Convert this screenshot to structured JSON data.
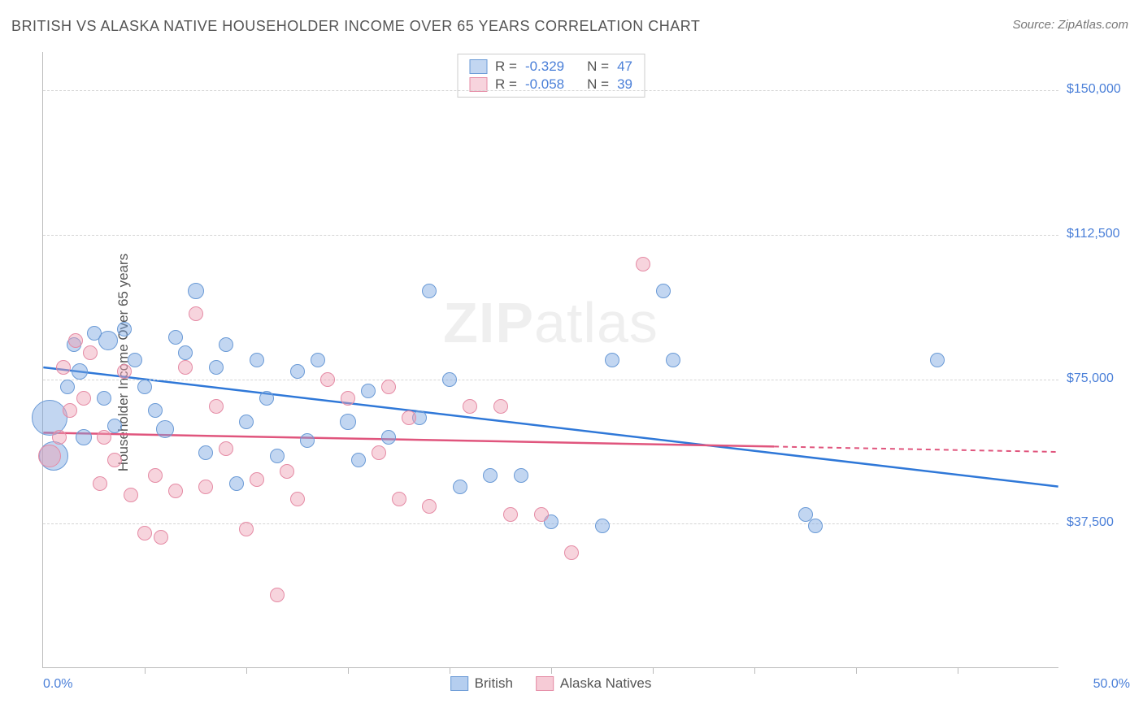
{
  "title": "BRITISH VS ALASKA NATIVE HOUSEHOLDER INCOME OVER 65 YEARS CORRELATION CHART",
  "source": "Source: ZipAtlas.com",
  "ylabel": "Householder Income Over 65 years",
  "watermark_bold": "ZIP",
  "watermark_rest": "atlas",
  "chart": {
    "type": "scatter",
    "xlim": [
      0,
      50
    ],
    "ylim": [
      0,
      160000
    ],
    "x_start_label": "0.0%",
    "x_end_label": "50.0%",
    "y_ticks": [
      {
        "value": 37500,
        "label": "$37,500"
      },
      {
        "value": 75000,
        "label": "$75,000"
      },
      {
        "value": 112500,
        "label": "$112,500"
      },
      {
        "value": 150000,
        "label": "$150,000"
      }
    ],
    "x_tick_positions": [
      5,
      10,
      15,
      20,
      25,
      30,
      35,
      40,
      45
    ],
    "background_color": "#ffffff",
    "grid_color": "#d5d5d5",
    "axis_color": "#bbbbbb",
    "label_color": "#4a7fd8",
    "series": [
      {
        "name": "British",
        "fill": "rgba(120,165,225,0.45)",
        "stroke": "#6a9ad6",
        "trend_color": "#2f78d8",
        "R": "-0.329",
        "N": "47",
        "trend": {
          "x1": 0,
          "y1": 78000,
          "x2": 50,
          "y2": 47000,
          "solid_until_x": 50
        },
        "points": [
          {
            "x": 0.3,
            "y": 65000,
            "r": 22
          },
          {
            "x": 0.5,
            "y": 55000,
            "r": 18
          },
          {
            "x": 1.2,
            "y": 73000,
            "r": 9
          },
          {
            "x": 1.5,
            "y": 84000,
            "r": 9
          },
          {
            "x": 1.8,
            "y": 77000,
            "r": 10
          },
          {
            "x": 2.0,
            "y": 60000,
            "r": 10
          },
          {
            "x": 2.5,
            "y": 87000,
            "r": 9
          },
          {
            "x": 3.0,
            "y": 70000,
            "r": 9
          },
          {
            "x": 3.2,
            "y": 85000,
            "r": 12
          },
          {
            "x": 3.5,
            "y": 63000,
            "r": 9
          },
          {
            "x": 4.0,
            "y": 88000,
            "r": 9
          },
          {
            "x": 4.5,
            "y": 80000,
            "r": 9
          },
          {
            "x": 5.0,
            "y": 73000,
            "r": 9
          },
          {
            "x": 5.5,
            "y": 67000,
            "r": 9
          },
          {
            "x": 6.0,
            "y": 62000,
            "r": 11
          },
          {
            "x": 6.5,
            "y": 86000,
            "r": 9
          },
          {
            "x": 7.0,
            "y": 82000,
            "r": 9
          },
          {
            "x": 7.5,
            "y": 98000,
            "r": 10
          },
          {
            "x": 8.0,
            "y": 56000,
            "r": 9
          },
          {
            "x": 8.5,
            "y": 78000,
            "r": 9
          },
          {
            "x": 9.0,
            "y": 84000,
            "r": 9
          },
          {
            "x": 9.5,
            "y": 48000,
            "r": 9
          },
          {
            "x": 10.0,
            "y": 64000,
            "r": 9
          },
          {
            "x": 10.5,
            "y": 80000,
            "r": 9
          },
          {
            "x": 11.0,
            "y": 70000,
            "r": 9
          },
          {
            "x": 11.5,
            "y": 55000,
            "r": 9
          },
          {
            "x": 12.5,
            "y": 77000,
            "r": 9
          },
          {
            "x": 13.0,
            "y": 59000,
            "r": 9
          },
          {
            "x": 13.5,
            "y": 80000,
            "r": 9
          },
          {
            "x": 15.0,
            "y": 64000,
            "r": 10
          },
          {
            "x": 15.5,
            "y": 54000,
            "r": 9
          },
          {
            "x": 16.0,
            "y": 72000,
            "r": 9
          },
          {
            "x": 17.0,
            "y": 60000,
            "r": 9
          },
          {
            "x": 18.5,
            "y": 65000,
            "r": 9
          },
          {
            "x": 19.0,
            "y": 98000,
            "r": 9
          },
          {
            "x": 20.0,
            "y": 75000,
            "r": 9
          },
          {
            "x": 20.5,
            "y": 47000,
            "r": 9
          },
          {
            "x": 22.0,
            "y": 50000,
            "r": 9
          },
          {
            "x": 23.5,
            "y": 50000,
            "r": 9
          },
          {
            "x": 25.0,
            "y": 38000,
            "r": 9
          },
          {
            "x": 27.5,
            "y": 37000,
            "r": 9
          },
          {
            "x": 28.0,
            "y": 80000,
            "r": 9
          },
          {
            "x": 30.5,
            "y": 98000,
            "r": 9
          },
          {
            "x": 31.0,
            "y": 80000,
            "r": 9
          },
          {
            "x": 37.5,
            "y": 40000,
            "r": 9
          },
          {
            "x": 38.0,
            "y": 37000,
            "r": 9
          },
          {
            "x": 44.0,
            "y": 80000,
            "r": 9
          }
        ]
      },
      {
        "name": "Alaska Natives",
        "fill": "rgba(238,160,180,0.45)",
        "stroke": "#e58ba5",
        "trend_color": "#e0557d",
        "R": "-0.058",
        "N": "39",
        "trend": {
          "x1": 0,
          "y1": 61000,
          "x2": 50,
          "y2": 56000,
          "solid_until_x": 36
        },
        "points": [
          {
            "x": 0.3,
            "y": 55000,
            "r": 14
          },
          {
            "x": 0.8,
            "y": 60000,
            "r": 9
          },
          {
            "x": 1.0,
            "y": 78000,
            "r": 9
          },
          {
            "x": 1.3,
            "y": 67000,
            "r": 9
          },
          {
            "x": 1.6,
            "y": 85000,
            "r": 9
          },
          {
            "x": 2.0,
            "y": 70000,
            "r": 9
          },
          {
            "x": 2.3,
            "y": 82000,
            "r": 9
          },
          {
            "x": 2.8,
            "y": 48000,
            "r": 9
          },
          {
            "x": 3.0,
            "y": 60000,
            "r": 9
          },
          {
            "x": 3.5,
            "y": 54000,
            "r": 9
          },
          {
            "x": 4.0,
            "y": 77000,
            "r": 9
          },
          {
            "x": 4.3,
            "y": 45000,
            "r": 9
          },
          {
            "x": 5.0,
            "y": 35000,
            "r": 9
          },
          {
            "x": 5.5,
            "y": 50000,
            "r": 9
          },
          {
            "x": 5.8,
            "y": 34000,
            "r": 9
          },
          {
            "x": 6.5,
            "y": 46000,
            "r": 9
          },
          {
            "x": 7.0,
            "y": 78000,
            "r": 9
          },
          {
            "x": 7.5,
            "y": 92000,
            "r": 9
          },
          {
            "x": 8.0,
            "y": 47000,
            "r": 9
          },
          {
            "x": 8.5,
            "y": 68000,
            "r": 9
          },
          {
            "x": 9.0,
            "y": 57000,
            "r": 9
          },
          {
            "x": 10.0,
            "y": 36000,
            "r": 9
          },
          {
            "x": 10.5,
            "y": 49000,
            "r": 9
          },
          {
            "x": 11.5,
            "y": 19000,
            "r": 9
          },
          {
            "x": 12.0,
            "y": 51000,
            "r": 9
          },
          {
            "x": 12.5,
            "y": 44000,
            "r": 9
          },
          {
            "x": 14.0,
            "y": 75000,
            "r": 9
          },
          {
            "x": 15.0,
            "y": 70000,
            "r": 9
          },
          {
            "x": 16.5,
            "y": 56000,
            "r": 9
          },
          {
            "x": 17.0,
            "y": 73000,
            "r": 9
          },
          {
            "x": 17.5,
            "y": 44000,
            "r": 9
          },
          {
            "x": 18.0,
            "y": 65000,
            "r": 9
          },
          {
            "x": 19.0,
            "y": 42000,
            "r": 9
          },
          {
            "x": 21.0,
            "y": 68000,
            "r": 9
          },
          {
            "x": 22.5,
            "y": 68000,
            "r": 9
          },
          {
            "x": 23.0,
            "y": 40000,
            "r": 9
          },
          {
            "x": 24.5,
            "y": 40000,
            "r": 9
          },
          {
            "x": 26.0,
            "y": 30000,
            "r": 9
          },
          {
            "x": 29.5,
            "y": 105000,
            "r": 9
          }
        ]
      }
    ]
  },
  "legend": {
    "items": [
      {
        "label": "British",
        "fill": "rgba(120,165,225,0.55)",
        "stroke": "#6a9ad6"
      },
      {
        "label": "Alaska Natives",
        "fill": "rgba(238,160,180,0.55)",
        "stroke": "#e58ba5"
      }
    ]
  },
  "stats_labels": {
    "R": "R =",
    "N": "N ="
  }
}
